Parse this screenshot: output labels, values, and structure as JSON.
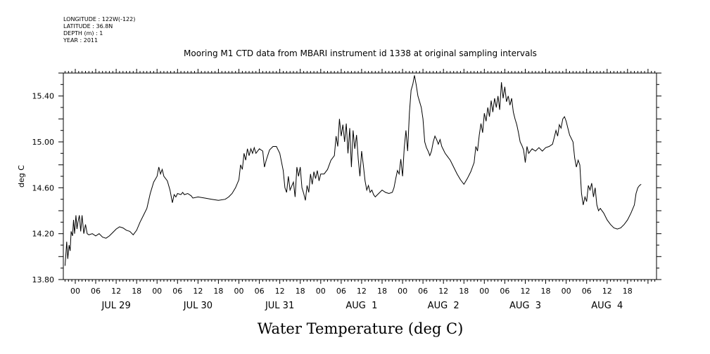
{
  "header": {
    "meta_lines": [
      "LONGITUDE : 122W(-122)",
      "LATITUDE : 36.8N",
      "DEPTH (m) : 1",
      "YEAR : 2011"
    ]
  },
  "chart_data": {
    "type": "line",
    "title": "Mooring M1 CTD data from MBARI instrument id 1338 at original sampling intervals",
    "xlabel": "Water Temperature (deg C)",
    "ylabel": "deg C",
    "ylim": [
      13.8,
      15.6
    ],
    "yticks": [
      "13.80",
      "14.20",
      "14.60",
      "15.00",
      "15.40"
    ],
    "hour_labels": [
      "00",
      "06",
      "12",
      "18"
    ],
    "day_labels": [
      "JUL 29",
      "JUL 30",
      "JUL 31",
      "AUG  1",
      "AUG  2",
      "AUG  3",
      "AUG  4"
    ],
    "xlim_hours": [
      -3.5,
      170.5
    ],
    "x_unit": "hours since 2011-07-29 00:00",
    "grid": false,
    "series": [
      {
        "color": "#000000",
        "points": [
          [
            -3,
            13.92
          ],
          [
            -2.8,
            14.0
          ],
          [
            -2.5,
            14.13
          ],
          [
            -2.2,
            13.98
          ],
          [
            -1.8,
            14.1
          ],
          [
            -1.5,
            14.05
          ],
          [
            -1.2,
            14.22
          ],
          [
            -0.8,
            14.18
          ],
          [
            -0.5,
            14.32
          ],
          [
            -0.2,
            14.2
          ],
          [
            0.2,
            14.36
          ],
          [
            0.5,
            14.24
          ],
          [
            0.8,
            14.3
          ],
          [
            1.2,
            14.36
          ],
          [
            1.6,
            14.22
          ],
          [
            2,
            14.36
          ],
          [
            2.5,
            14.2
          ],
          [
            3,
            14.28
          ],
          [
            3.5,
            14.2
          ],
          [
            4,
            14.19
          ],
          [
            5,
            14.2
          ],
          [
            6,
            14.18
          ],
          [
            7,
            14.2
          ],
          [
            8,
            14.17
          ],
          [
            9,
            14.16
          ],
          [
            10,
            14.18
          ],
          [
            11,
            14.21
          ],
          [
            12,
            14.24
          ],
          [
            13,
            14.26
          ],
          [
            14,
            14.25
          ],
          [
            15,
            14.23
          ],
          [
            16,
            14.22
          ],
          [
            17,
            14.19
          ],
          [
            18,
            14.23
          ],
          [
            19,
            14.3
          ],
          [
            20,
            14.36
          ],
          [
            21,
            14.42
          ],
          [
            22,
            14.55
          ],
          [
            23,
            14.65
          ],
          [
            24,
            14.7
          ],
          [
            24.5,
            14.78
          ],
          [
            25,
            14.72
          ],
          [
            25.5,
            14.76
          ],
          [
            26,
            14.7
          ],
          [
            27,
            14.66
          ],
          [
            27.8,
            14.58
          ],
          [
            28.5,
            14.47
          ],
          [
            29,
            14.54
          ],
          [
            29.5,
            14.52
          ],
          [
            30,
            14.55
          ],
          [
            31,
            14.54
          ],
          [
            31.5,
            14.56
          ],
          [
            32,
            14.54
          ],
          [
            33,
            14.55
          ],
          [
            34,
            14.53
          ],
          [
            34.5,
            14.51
          ],
          [
            36,
            14.52
          ],
          [
            38,
            14.51
          ],
          [
            40,
            14.5
          ],
          [
            42,
            14.49
          ],
          [
            44,
            14.5
          ],
          [
            45,
            14.52
          ],
          [
            46,
            14.55
          ],
          [
            47,
            14.6
          ],
          [
            48,
            14.67
          ],
          [
            48.5,
            14.8
          ],
          [
            49,
            14.76
          ],
          [
            49.5,
            14.9
          ],
          [
            50,
            14.84
          ],
          [
            50.5,
            14.94
          ],
          [
            51,
            14.88
          ],
          [
            51.5,
            14.94
          ],
          [
            52,
            14.9
          ],
          [
            52.5,
            14.95
          ],
          [
            53,
            14.9
          ],
          [
            54,
            14.94
          ],
          [
            55,
            14.92
          ],
          [
            55.5,
            14.78
          ],
          [
            56,
            14.84
          ],
          [
            57,
            14.93
          ],
          [
            58,
            14.96
          ],
          [
            59,
            14.96
          ],
          [
            60,
            14.9
          ],
          [
            61,
            14.75
          ],
          [
            61.5,
            14.6
          ],
          [
            62,
            14.56
          ],
          [
            62.5,
            14.7
          ],
          [
            63,
            14.58
          ],
          [
            64,
            14.65
          ],
          [
            64.5,
            14.52
          ],
          [
            65,
            14.78
          ],
          [
            65.5,
            14.7
          ],
          [
            66,
            14.78
          ],
          [
            66.5,
            14.6
          ],
          [
            67,
            14.55
          ],
          [
            67.5,
            14.49
          ],
          [
            68,
            14.62
          ],
          [
            68.5,
            14.56
          ],
          [
            69,
            14.72
          ],
          [
            69.5,
            14.63
          ],
          [
            70,
            14.74
          ],
          [
            70.5,
            14.68
          ],
          [
            71,
            14.75
          ],
          [
            71.5,
            14.66
          ],
          [
            72,
            14.72
          ],
          [
            73,
            14.72
          ],
          [
            74,
            14.76
          ],
          [
            75,
            14.84
          ],
          [
            76,
            14.88
          ],
          [
            76.5,
            15.05
          ],
          [
            77,
            14.96
          ],
          [
            77.5,
            15.2
          ],
          [
            78,
            15.05
          ],
          [
            78.5,
            15.15
          ],
          [
            79,
            15.0
          ],
          [
            79.5,
            15.16
          ],
          [
            80,
            14.9
          ],
          [
            80.5,
            15.12
          ],
          [
            81,
            14.78
          ],
          [
            81.5,
            15.1
          ],
          [
            82,
            14.94
          ],
          [
            82.5,
            15.06
          ],
          [
            83,
            14.85
          ],
          [
            83.5,
            14.7
          ],
          [
            84,
            14.92
          ],
          [
            84.5,
            14.8
          ],
          [
            85,
            14.66
          ],
          [
            85.5,
            14.58
          ],
          [
            86,
            14.62
          ],
          [
            86.5,
            14.56
          ],
          [
            87,
            14.58
          ],
          [
            87.5,
            14.54
          ],
          [
            88,
            14.52
          ],
          [
            89,
            14.55
          ],
          [
            90,
            14.58
          ],
          [
            91,
            14.56
          ],
          [
            92,
            14.55
          ],
          [
            93,
            14.56
          ],
          [
            93.5,
            14.6
          ],
          [
            94,
            14.68
          ],
          [
            94.5,
            14.75
          ],
          [
            95,
            14.72
          ],
          [
            95.5,
            14.85
          ],
          [
            96,
            14.7
          ],
          [
            96.5,
            14.95
          ],
          [
            97,
            15.1
          ],
          [
            97.5,
            14.92
          ],
          [
            98,
            15.25
          ],
          [
            98.5,
            15.45
          ],
          [
            99,
            15.5
          ],
          [
            99.5,
            15.58
          ],
          [
            100,
            15.5
          ],
          [
            100.5,
            15.4
          ],
          [
            101,
            15.35
          ],
          [
            101.5,
            15.3
          ],
          [
            102,
            15.2
          ],
          [
            102.5,
            15.0
          ],
          [
            103,
            14.95
          ],
          [
            103.5,
            14.92
          ],
          [
            104,
            14.88
          ],
          [
            104.5,
            14.92
          ],
          [
            105,
            15.0
          ],
          [
            105.5,
            15.05
          ],
          [
            106,
            15.02
          ],
          [
            106.5,
            14.98
          ],
          [
            107,
            15.02
          ],
          [
            107.5,
            14.96
          ],
          [
            108,
            14.93
          ],
          [
            108.5,
            14.9
          ],
          [
            110,
            14.84
          ],
          [
            111,
            14.78
          ],
          [
            112,
            14.72
          ],
          [
            113,
            14.67
          ],
          [
            114,
            14.63
          ],
          [
            115,
            14.68
          ],
          [
            116,
            14.74
          ],
          [
            117,
            14.82
          ],
          [
            117.5,
            14.96
          ],
          [
            118,
            14.92
          ],
          [
            118.5,
            15.06
          ],
          [
            119,
            15.16
          ],
          [
            119.5,
            15.08
          ],
          [
            120,
            15.25
          ],
          [
            120.5,
            15.18
          ],
          [
            121,
            15.3
          ],
          [
            121.5,
            15.22
          ],
          [
            122,
            15.36
          ],
          [
            122.5,
            15.26
          ],
          [
            123,
            15.38
          ],
          [
            123.5,
            15.3
          ],
          [
            124,
            15.4
          ],
          [
            124.5,
            15.28
          ],
          [
            125,
            15.52
          ],
          [
            125.5,
            15.38
          ],
          [
            126,
            15.48
          ],
          [
            126.5,
            15.35
          ],
          [
            127,
            15.4
          ],
          [
            127.5,
            15.32
          ],
          [
            128,
            15.38
          ],
          [
            128.5,
            15.26
          ],
          [
            129,
            15.2
          ],
          [
            129.5,
            15.15
          ],
          [
            130,
            15.08
          ],
          [
            130.5,
            15.0
          ],
          [
            131,
            14.97
          ],
          [
            131.5,
            14.93
          ],
          [
            132,
            14.82
          ],
          [
            132.5,
            14.96
          ],
          [
            133,
            14.9
          ],
          [
            134,
            14.94
          ],
          [
            135,
            14.92
          ],
          [
            136,
            14.95
          ],
          [
            137,
            14.92
          ],
          [
            138,
            14.95
          ],
          [
            139,
            14.96
          ],
          [
            140,
            14.98
          ],
          [
            140.5,
            15.04
          ],
          [
            141,
            15.1
          ],
          [
            141.5,
            15.05
          ],
          [
            142,
            15.15
          ],
          [
            142.5,
            15.12
          ],
          [
            143,
            15.2
          ],
          [
            143.5,
            15.22
          ],
          [
            144,
            15.18
          ],
          [
            144.5,
            15.12
          ],
          [
            145,
            15.06
          ],
          [
            146,
            15.0
          ],
          [
            146.5,
            14.86
          ],
          [
            147,
            14.78
          ],
          [
            147.5,
            14.84
          ],
          [
            148,
            14.8
          ],
          [
            148.5,
            14.55
          ],
          [
            149,
            14.45
          ],
          [
            149.5,
            14.52
          ],
          [
            150,
            14.48
          ],
          [
            150.5,
            14.62
          ],
          [
            151,
            14.58
          ],
          [
            151.5,
            14.64
          ],
          [
            152,
            14.52
          ],
          [
            152.5,
            14.6
          ],
          [
            153,
            14.45
          ],
          [
            153.5,
            14.4
          ],
          [
            154,
            14.42
          ],
          [
            155,
            14.38
          ],
          [
            156,
            14.32
          ],
          [
            157,
            14.28
          ],
          [
            158,
            14.25
          ],
          [
            159,
            14.24
          ],
          [
            160,
            14.25
          ],
          [
            161,
            14.28
          ],
          [
            162,
            14.32
          ],
          [
            163,
            14.38
          ],
          [
            164,
            14.45
          ],
          [
            164.5,
            14.55
          ],
          [
            165,
            14.6
          ],
          [
            165.5,
            14.62
          ],
          [
            166,
            14.63
          ]
        ]
      }
    ]
  }
}
